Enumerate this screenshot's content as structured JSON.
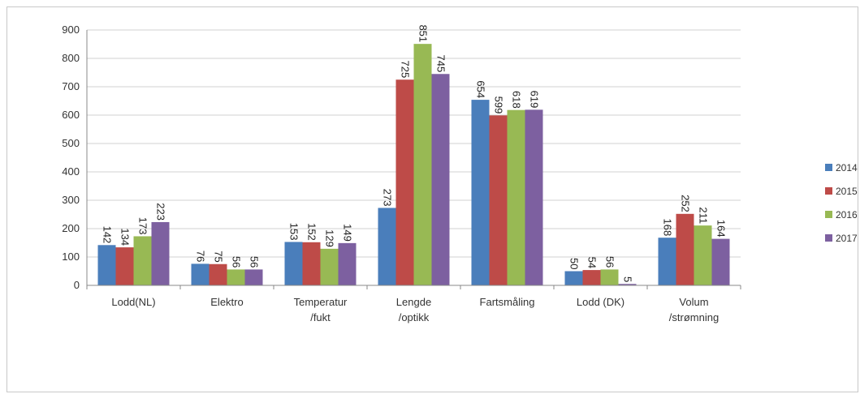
{
  "chart_data": {
    "type": "bar",
    "categories": [
      [
        "Lodd(NL)"
      ],
      [
        "Elektro"
      ],
      [
        "Temperatur",
        "/fukt"
      ],
      [
        "Lengde",
        "/optikk"
      ],
      [
        "Fartsmåling"
      ],
      [
        "Lodd (DK)"
      ],
      [
        "Volum",
        "/strømning"
      ]
    ],
    "series": [
      {
        "name": "2014",
        "color": "#4a7ebb",
        "values": [
          142,
          76,
          153,
          273,
          654,
          50,
          168
        ]
      },
      {
        "name": "2015",
        "color": "#be4b48",
        "values": [
          134,
          75,
          152,
          725,
          599,
          54,
          252
        ]
      },
      {
        "name": "2016",
        "color": "#98b954",
        "values": [
          173,
          56,
          129,
          851,
          618,
          56,
          211
        ]
      },
      {
        "name": "2017",
        "color": "#7d60a0",
        "values": [
          223,
          56,
          149,
          745,
          619,
          5,
          164
        ]
      }
    ],
    "ylim": [
      0,
      900
    ],
    "yticks": [
      0,
      100,
      200,
      300,
      400,
      500,
      600,
      700,
      800,
      900
    ],
    "grid": true,
    "legend": "right",
    "data_labels": "vertical, above bars"
  }
}
